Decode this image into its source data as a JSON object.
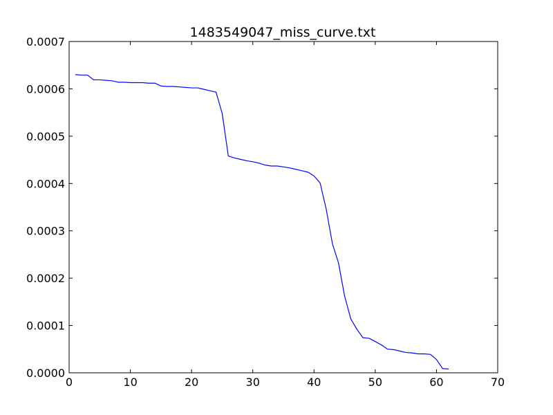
{
  "chart_data": {
    "type": "line",
    "title": "1483549047_miss_curve.txt",
    "xlabel": "",
    "ylabel": "",
    "xlim": [
      0,
      70
    ],
    "ylim": [
      0,
      0.0007
    ],
    "x_ticks": [
      0,
      10,
      20,
      30,
      40,
      50,
      60,
      70
    ],
    "x_tick_labels": [
      "0",
      "10",
      "20",
      "30",
      "40",
      "50",
      "60",
      "70"
    ],
    "y_ticks": [
      0,
      0.0001,
      0.0002,
      0.0003,
      0.0004,
      0.0005,
      0.0006,
      0.0007
    ],
    "y_tick_labels": [
      "0.0000",
      "0.0001",
      "0.0002",
      "0.0003",
      "0.0004",
      "0.0005",
      "0.0006",
      "0.0007"
    ],
    "grid": false,
    "legend": "none",
    "series": [
      {
        "color": "#0000ff",
        "x": [
          1,
          2,
          3,
          4,
          5,
          6,
          7,
          8,
          9,
          10,
          11,
          12,
          13,
          14,
          15,
          16,
          17,
          18,
          19,
          20,
          21,
          22,
          23,
          24,
          25,
          26,
          27,
          28,
          29,
          30,
          31,
          32,
          33,
          34,
          35,
          36,
          37,
          38,
          39,
          40,
          41,
          42,
          43,
          44,
          45,
          46,
          47,
          48,
          49,
          50,
          51,
          52,
          53,
          54,
          55,
          56,
          57,
          58,
          59,
          60,
          61,
          62
        ],
        "y": [
          0.00063,
          0.000629,
          0.000629,
          0.000619,
          0.000619,
          0.000618,
          0.000617,
          0.000614,
          0.000614,
          0.000613,
          0.000613,
          0.000613,
          0.000612,
          0.000612,
          0.000606,
          0.000605,
          0.000605,
          0.000604,
          0.000603,
          0.000602,
          0.000602,
          0.000599,
          0.000596,
          0.000593,
          0.000548,
          0.000458,
          0.000454,
          0.000451,
          0.000448,
          0.000446,
          0.000443,
          0.000439,
          0.000437,
          0.000437,
          0.000435,
          0.000433,
          0.00043,
          0.000427,
          0.000424,
          0.000416,
          0.000401,
          0.000345,
          0.000273,
          0.000232,
          0.000162,
          0.000114,
          9.2e-05,
          7.4e-05,
          7.3e-05,
          6.6e-05,
          5.9e-05,
          5e-05,
          4.9e-05,
          4.6e-05,
          4.3e-05,
          4.2e-05,
          4e-05,
          4e-05,
          3.9e-05,
          2.8e-05,
          9e-06,
          8e-06
        ]
      }
    ]
  }
}
